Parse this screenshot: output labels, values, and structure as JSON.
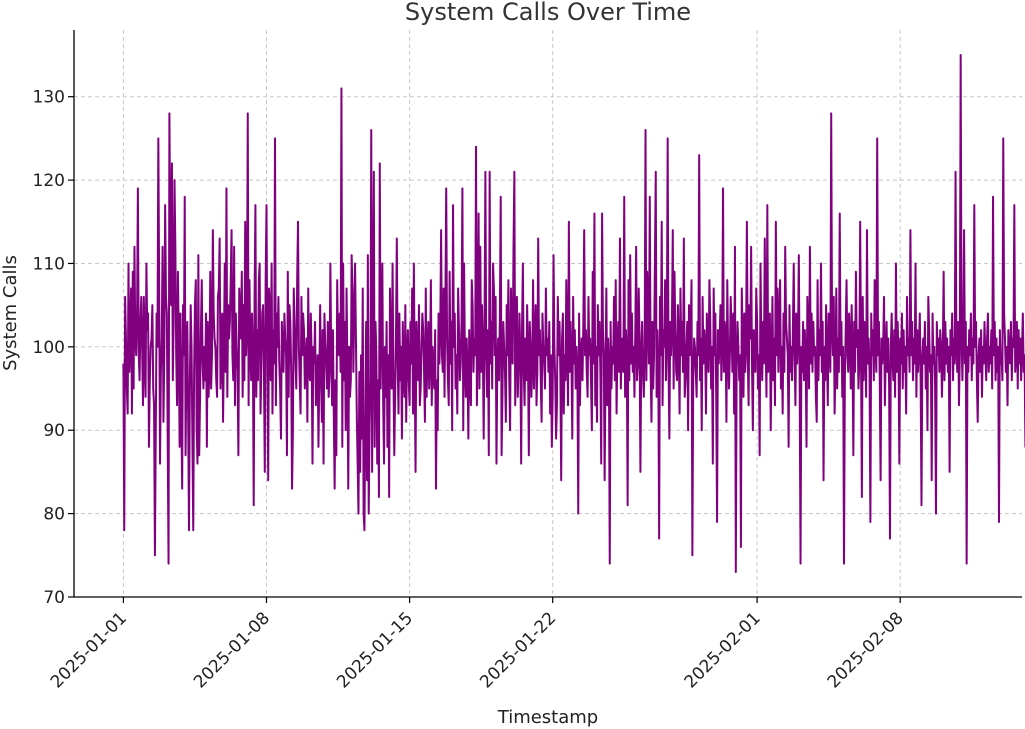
{
  "chart_data": {
    "type": "line",
    "title": "System Calls Over Time",
    "xlabel": "Timestamp",
    "ylabel": "System Calls",
    "x_start": "2025-01-01 00:00",
    "x_end": "2025-02-11 15:00",
    "x_step_hours": 1,
    "xlim": [
      "2024-12-29 14:00",
      "2025-02-13 23:00"
    ],
    "ylim": [
      70,
      138
    ],
    "y_ticks": [
      70,
      80,
      90,
      100,
      110,
      120,
      130
    ],
    "x_ticks": [
      "2025-01-01",
      "2025-01-08",
      "2025-01-15",
      "2025-01-22",
      "2025-02-01",
      "2025-02-08"
    ],
    "grid": true,
    "legend": "none",
    "series": [
      {
        "color": "#800080",
        "values": [
          98,
          78,
          106,
          101,
          95,
          92,
          110,
          97,
          101,
          107,
          92,
          109,
          95,
          112,
          101,
          99,
          103,
          119,
          99,
          96,
          103,
          106,
          100,
          93,
          106,
          98,
          94,
          110,
          102,
          104,
          88,
          96,
          100,
          101,
          105,
          95,
          93,
          75,
          90,
          104,
          100,
          125,
          107,
          86,
          97,
          101,
          112,
          91,
          99,
          117,
          106,
          104,
          89,
          74,
          128,
          113,
          105,
          122,
          96,
          103,
          120,
          112,
          99,
          93,
          109,
          101,
          88,
          104,
          92,
          83,
          105,
          99,
          118,
          87,
          98,
          103,
          92,
          78,
          95,
          105,
          100,
          89,
          78,
          97,
          105,
          108,
          90,
          86,
          111,
          87,
          94,
          102,
          108,
          98,
          95,
          100,
          96,
          104,
          88,
          103,
          94,
          97,
          109,
          95,
          99,
          114,
          104,
          101,
          100,
          96,
          94,
          106,
          107,
          113,
          95,
          99,
          104,
          91,
          100,
          110,
          97,
          119,
          94,
          105,
          101,
          103,
          108,
          114,
          99,
          96,
          112,
          93,
          104,
          100,
          97,
          87,
          107,
          103,
          101,
          109,
          94,
          105,
          96,
          115,
          99,
          102,
          128,
          93,
          108,
          100,
          96,
          104,
          99,
          81,
          106,
          117,
          94,
          102,
          96,
          108,
          110,
          92,
          98,
          104,
          105,
          97,
          85,
          108,
          117,
          99,
          84,
          107,
          104,
          96,
          110,
          92,
          102,
          98,
          125,
          93,
          104,
          100,
          106,
          98,
          95,
          89,
          103,
          99,
          97,
          104,
          101,
          99,
          87,
          109,
          94,
          105,
          103,
          97,
          83,
          90,
          107,
          103,
          98,
          95,
          108,
          115,
          100,
          96,
          92,
          106,
          99,
          104,
          102,
          95,
          98,
          101,
          91,
          107,
          97,
          96,
          104,
          99,
          86,
          100,
          98,
          103,
          93,
          95,
          99,
          88,
          96,
          105,
          97,
          91,
          102,
          86,
          104,
          100,
          98,
          95,
          103,
          94,
          97,
          110,
          99,
          93,
          102,
          92,
          83,
          96,
          87,
          108,
          100,
          99,
          104,
          97,
          131,
          88,
          110,
          96,
          103,
          90,
          107,
          98,
          83,
          100,
          94,
          96,
          111,
          106,
          97,
          105,
          110,
          101,
          92,
          86,
          80,
          97,
          85,
          99,
          89,
          107,
          80,
          78,
          92,
          103,
          84,
          111,
          80,
          90,
          96,
          126,
          85,
          104,
          121,
          88,
          103,
          99,
          86,
          96,
          82,
          122,
          95,
          103,
          110,
          93,
          86,
          100,
          94,
          103,
          88,
          99,
          82,
          107,
          98,
          95,
          110,
          97,
          87,
          94,
          101,
          113,
          98,
          92,
          104,
          96,
          100,
          89,
          103,
          97,
          94,
          105,
          91,
          99,
          102,
          96,
          93,
          103,
          98,
          107,
          92,
          110,
          97,
          85,
          103,
          99,
          96,
          105,
          93,
          95,
          100,
          104,
          102,
          97,
          91,
          107,
          94,
          99,
          103,
          95,
          98,
          108,
          93,
          100,
          97,
          95,
          102,
          83,
          96,
          90,
          104,
          98,
          102,
          114,
          99,
          97,
          107,
          94,
          105,
          119,
          101,
          96,
          93,
          109,
          98,
          103,
          90,
          117,
          100,
          104,
          95,
          99,
          92,
          107,
          102,
          96,
          98,
          103,
          119,
          90,
          110,
          98,
          94,
          101,
          97,
          89,
          102,
          96,
          93,
          108,
          105,
          97,
          101,
          99,
          124,
          93,
          101,
          116,
          95,
          112,
          97,
          105,
          100,
          89,
          103,
          121,
          99,
          94,
          102,
          87,
          121,
          98,
          103,
          95,
          110,
          107,
          99,
          106,
          86,
          98,
          101,
          96,
          104,
          118,
          87,
          94,
          103,
          100,
          97,
          91,
          105,
          99,
          108,
          96,
          90,
          107,
          100,
          98,
          112,
          121,
          93,
          101,
          106,
          94,
          98,
          104,
          99,
          86,
          102,
          110,
          97,
          93,
          101,
          96,
          105,
          99,
          87,
          103,
          100,
          94,
          98,
          108,
          95,
          101,
          105,
          93,
          97,
          113,
          99,
          102,
          96,
          91,
          104,
          100,
          98,
          95,
          107,
          99,
          101,
          97,
          103,
          92,
          99,
          88,
          94,
          111,
          100,
          96,
          89,
          93,
          106,
          99,
          103,
          97,
          84,
          101,
          104,
          92,
          99,
          96,
          108,
          100,
          93,
          115,
          97,
          103,
          99,
          89,
          106,
          98,
          102,
          95,
          100,
          97,
          80,
          104,
          93,
          99,
          101,
          96,
          103,
          114,
          99,
          102,
          97,
          94,
          106,
          99,
          101,
          96,
          90,
          109,
          98,
          116,
          93,
          100,
          91,
          105,
          99,
          103,
          97,
          86,
          116,
          102,
          99,
          84,
          97,
          107,
          93,
          101,
          98,
          74,
          103,
          95,
          100,
          98,
          106,
          96,
          108,
          92,
          100,
          103,
          97,
          113,
          95,
          99,
          101,
          97,
          118,
          94,
          102,
          99,
          81,
          108,
          96,
          111,
          98,
          104,
          97,
          100,
          94,
          102,
          112,
          96,
          98,
          107,
          101,
          85,
          99,
          103,
          97,
          94,
          100,
          126,
          96,
          109,
          103,
          98,
          118,
          97,
          91,
          103,
          95,
          99,
          110,
          121,
          94,
          102,
          97,
          77,
          106,
          99,
          115,
          93,
          102,
          100,
          108,
          96,
          101,
          125,
          98,
          89,
          103,
          99,
          103,
          114,
          95,
          109,
          102,
          97,
          96,
          105,
          100,
          92,
          107,
          99,
          103,
          97,
          113,
          94,
          96,
          100,
          103,
          90,
          105,
          99,
          102,
          108,
          75,
          96,
          101,
          100,
          97,
          94,
          103,
          99,
          123,
          96,
          101,
          90,
          106,
          98,
          102,
          100,
          92,
          104,
          99,
          97,
          108,
          103,
          95,
          100,
          86,
          107,
          99,
          104,
          94,
          79,
          102,
          98,
          101,
          105,
          96,
          100,
          119,
          97,
          103,
          101,
          91,
          108,
          99,
          95,
          99,
          106,
          102,
          97,
          104,
          92,
          112,
          73,
          98,
          103,
          100,
          96,
          99,
          76,
          107,
          101,
          94,
          104,
          97,
          100,
          115,
          99,
          93,
          105,
          101,
          112,
          98,
          90,
          102,
          100,
          97,
          107,
          103,
          95,
          99,
          87,
          110,
          100,
          96,
          103,
          98,
          113,
          101,
          94,
          117,
          97,
          102,
          104,
          90,
          99,
          106,
          96,
          101,
          93,
          115,
          99,
          107,
          97,
          103,
          108,
          95,
          100,
          92,
          104,
          97,
          112,
          103,
          101,
          99,
          88,
          105,
          97,
          100,
          96,
          102,
          110,
          99,
          93,
          104,
          98,
          101,
          111,
          95,
          74,
          100,
          97,
          103,
          96,
          102,
          99,
          88,
          106,
          101,
          95,
          112,
          98,
          104,
          97,
          103,
          99,
          100,
          94,
          91,
          108,
          96,
          102,
          99,
          110,
          97,
          103,
          84,
          100,
          96,
          105,
          99,
          93,
          104,
          101,
          97,
          128,
          102,
          99,
          106,
          92,
          98,
          107,
          95,
          101,
          97,
          116,
          99,
          103,
          94,
          100,
          74,
          96,
          102,
          108,
          99,
          97,
          104,
          101,
          95,
          105,
          99,
          87,
          103,
          97,
          109,
          100,
          102,
          95,
          98,
          115,
          99,
          82,
          106,
          96,
          103,
          100,
          94,
          114,
          98,
          101,
          97,
          79,
          104,
          99,
          102,
          96,
          108,
          100,
          97,
          125,
          99,
          103,
          96,
          84,
          101,
          98,
          100,
          106,
          93,
          99,
          103,
          97,
          101,
          95,
          77,
          100,
          104,
          98,
          96,
          102,
          94,
          110,
          97,
          103,
          99,
          86,
          101,
          98,
          104,
          95,
          102,
          97,
          100,
          92,
          106,
          99,
          101,
          97,
          114,
          99,
          103,
          96,
          101,
          98,
          110,
          94,
          102,
          97,
          100,
          104,
          96,
          81,
          99,
          101,
          98,
          103,
          95,
          100,
          90,
          106,
          102,
          97,
          99,
          84,
          104,
          98,
          100,
          95,
          80,
          103,
          99,
          101,
          97,
          102,
          100,
          94,
          99,
          109,
          96,
          103,
          98,
          101,
          97,
          100,
          85,
          102,
          99,
          104,
          96,
          101,
          98,
          121,
          100,
          97,
          103,
          93,
          99,
          135,
          102,
          96,
          101,
          114,
          98,
          103,
          74,
          100,
          97,
          102,
          99,
          104,
          96,
          101,
          98,
          117,
          100,
          103,
          96,
          91,
          99,
          101,
          97,
          102,
          94,
          100,
          98,
          103,
          99,
          96,
          101,
          104,
          97,
          100,
          98,
          102,
          95,
          118,
          99,
          103,
          96,
          101,
          97,
          100,
          79,
          102,
          98,
          99,
          96,
          125,
          104,
          101,
          97,
          100,
          93,
          102,
          99,
          98,
          103,
          96,
          101,
          100,
          117,
          97,
          99,
          103,
          95,
          102,
          98,
          101,
          96,
          100,
          104,
          97,
          99,
          88,
          103,
          101,
          96,
          100,
          98,
          102,
          112,
          99,
          97,
          104,
          100,
          95,
          101,
          98,
          103,
          117,
          96,
          102,
          99,
          100,
          97,
          101,
          85,
          104,
          98,
          100,
          96,
          103,
          99,
          102,
          101,
          97,
          100,
          94,
          103,
          98,
          101,
          99,
          128,
          96,
          102,
          100,
          97,
          104,
          99,
          101,
          98,
          81,
          103,
          100,
          96,
          102,
          99,
          118,
          101,
          97,
          100,
          103,
          98,
          102,
          96,
          84,
          101,
          99,
          100,
          97,
          104,
          102,
          98,
          101,
          99,
          116,
          96,
          103,
          100,
          97,
          101,
          99,
          102,
          98,
          88,
          104,
          100,
          96,
          103,
          99,
          101,
          97,
          120,
          102,
          98,
          100,
          103,
          96,
          101,
          99,
          97,
          104,
          100,
          102,
          98,
          101,
          83,
          99,
          103,
          97,
          100,
          128,
          96,
          102,
          99,
          101,
          98,
          104,
          97,
          100,
          99,
          103,
          96,
          77,
          101,
          102,
          98,
          100,
          126,
          97,
          103,
          99,
          101,
          96,
          100,
          102,
          98,
          104,
          97,
          101,
          99,
          100,
          103,
          96,
          102,
          98,
          101,
          99,
          97,
          104,
          100,
          122,
          98,
          103,
          96,
          101,
          99,
          100,
          97,
          102,
          98,
          104,
          100,
          96,
          101,
          99,
          103,
          97,
          100,
          102,
          98,
          101,
          99,
          78,
          100,
          103,
          96,
          118,
          102,
          99,
          97,
          101,
          98,
          104,
          100,
          96,
          103,
          99,
          101,
          109,
          97,
          100,
          98,
          102
        ]
      }
    ]
  }
}
